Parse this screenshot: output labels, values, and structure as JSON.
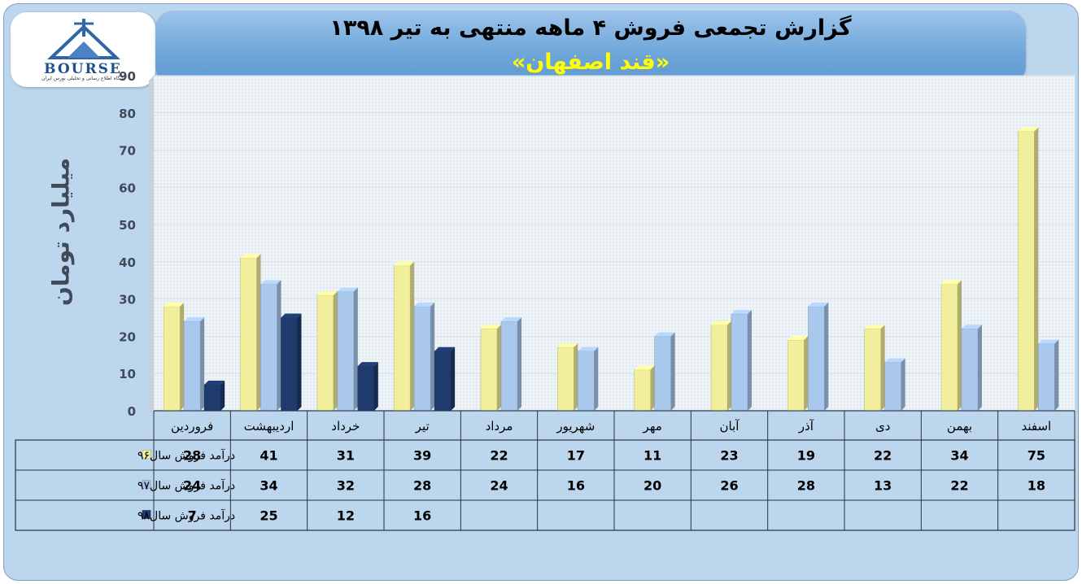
{
  "header": {
    "title": "گزارش تجمعی فروش ۴ ماهه منتهی به تیر ۱۳۹۸",
    "subtitle": "«قند اصفهان»"
  },
  "logo": {
    "text": "BOURSE",
    "tagline": "پایگاه اطلاع رسانی و تحلیلی بورس ایران"
  },
  "chart_data": {
    "type": "bar",
    "ylabel": "میلیارد تومان",
    "ylim": [
      0,
      90
    ],
    "yticks": [
      0,
      10,
      20,
      30,
      40,
      50,
      60,
      70,
      80,
      90
    ],
    "grid": true,
    "categories": [
      "فروردین",
      "اردیبهشت",
      "خرداد",
      "تیر",
      "مرداد",
      "شهریور",
      "مهر",
      "آبان",
      "آذر",
      "دی",
      "بهمن",
      "اسفند"
    ],
    "series": [
      {
        "name": "درآمد فروش سال۹۶",
        "color": "#f2ef9c",
        "values": [
          28,
          41,
          31,
          39,
          22,
          17,
          11,
          23,
          19,
          22,
          34,
          75
        ]
      },
      {
        "name": "درآمد فروش سال۹۷",
        "color": "#a9c8ec",
        "values": [
          24,
          34,
          32,
          28,
          24,
          16,
          20,
          26,
          28,
          13,
          22,
          18
        ]
      },
      {
        "name": "درآمد فروش سال۹۸",
        "color": "#1f3b6e",
        "values": [
          7,
          25,
          12,
          16,
          null,
          null,
          null,
          null,
          null,
          null,
          null,
          null
        ]
      }
    ],
    "data_table": true
  },
  "colors": {
    "background": "#bcd6ee",
    "plot_area": "#eef3f8",
    "title_text": "#000000",
    "subtitle_text": "#ffff00"
  }
}
